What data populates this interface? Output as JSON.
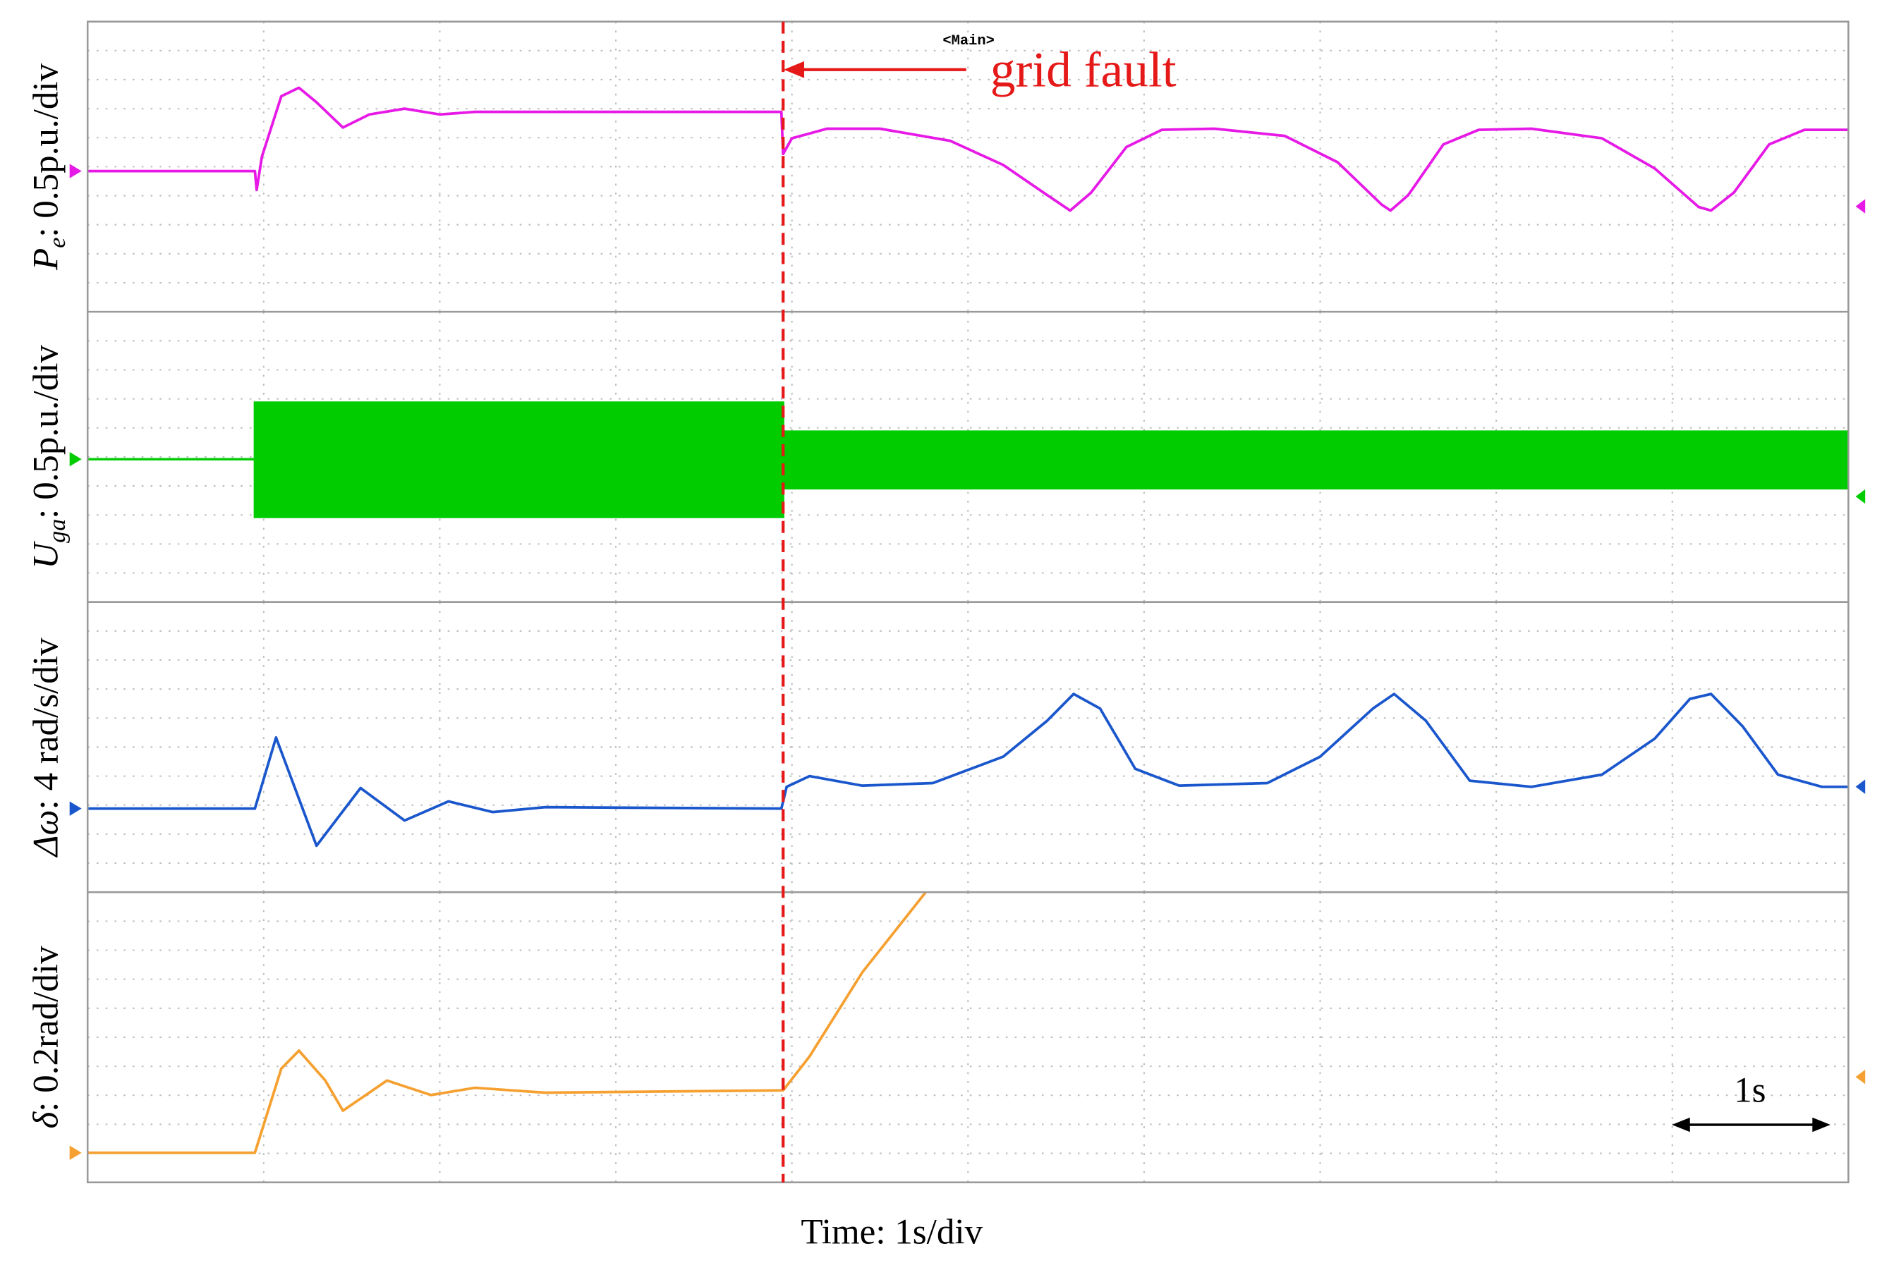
{
  "chart_data": [
    {
      "type": "line",
      "label": {
        "symbol": "P",
        "sub": "e",
        "scale": ": 0.5p.u./div"
      },
      "color": "#e619e6",
      "x": [
        0,
        0.95,
        0.96,
        0.99,
        1.1,
        1.2,
        1.3,
        1.45,
        1.6,
        1.8,
        2.0,
        2.2,
        3.0,
        3.94,
        3.95,
        4.0,
        4.2,
        4.5,
        4.9,
        5.2,
        5.45,
        5.58,
        5.7,
        5.9,
        6.1,
        6.4,
        6.8,
        7.1,
        7.35,
        7.4,
        7.5,
        7.7,
        7.9,
        8.2,
        8.6,
        8.9,
        9.15,
        9.22,
        9.35,
        9.55,
        9.75,
        10
      ],
      "values": [
        -0.15,
        -0.15,
        -0.8,
        0.35,
        2.43,
        2.72,
        2.22,
        1.35,
        1.8,
        2.0,
        1.8,
        1.89,
        1.89,
        1.89,
        0.44,
        0.98,
        1.31,
        1.31,
        0.89,
        0.06,
        -0.98,
        -1.51,
        -0.89,
        0.68,
        1.27,
        1.31,
        1.06,
        0.15,
        -1.31,
        -1.51,
        -0.98,
        0.77,
        1.27,
        1.31,
        0.98,
        -0.06,
        -1.39,
        -1.51,
        -0.89,
        0.77,
        1.27,
        1.27
      ],
      "xlim": [
        0,
        10
      ],
      "xticks": [
        1,
        2,
        3,
        4,
        5,
        6,
        7,
        8,
        9
      ],
      "ylim": [
        -5,
        5
      ],
      "yticks": [
        -4,
        -3,
        -2,
        -1,
        0,
        1,
        2,
        3,
        4
      ],
      "grid": true
    },
    {
      "type": "band",
      "label": {
        "symbol": "U",
        "sub": "ga",
        "scale": ": 0.5p.u./div"
      },
      "color": "#00cc00",
      "x": [
        0,
        0.95,
        0.95,
        3.95,
        3.95,
        10
      ],
      "upper": [
        -0.08,
        -0.08,
        1.87,
        1.87,
        0.87,
        0.87
      ],
      "lower": [
        -0.08,
        -0.08,
        -2.07,
        -2.07,
        -1.08,
        -1.08
      ],
      "xlim": [
        0,
        10
      ],
      "xticks": [
        1,
        2,
        3,
        4,
        5,
        6,
        7,
        8,
        9
      ],
      "ylim": [
        -5,
        5
      ],
      "yticks": [
        -4,
        -3,
        -2,
        -1,
        0,
        1,
        2,
        3,
        4
      ],
      "grid": true
    },
    {
      "type": "line",
      "label": {
        "symbol": "Δω",
        "scale": ": 4 rad/s/div"
      },
      "color": "#1a56cc",
      "x": [
        0,
        0.95,
        1.07,
        1.3,
        1.55,
        1.8,
        2.05,
        2.3,
        2.6,
        3.94,
        3.97,
        4.1,
        4.4,
        4.8,
        5.2,
        5.45,
        5.6,
        5.75,
        5.95,
        6.2,
        6.7,
        7.0,
        7.3,
        7.42,
        7.6,
        7.85,
        8.2,
        8.6,
        8.9,
        9.1,
        9.22,
        9.4,
        9.6,
        9.85,
        10
      ],
      "values": [
        -2.12,
        -2.12,
        0.33,
        -3.4,
        -1.41,
        -2.53,
        -1.87,
        -2.24,
        -2.07,
        -2.12,
        -1.37,
        -1.0,
        -1.33,
        -1.24,
        -0.33,
        0.91,
        1.83,
        1.33,
        -0.75,
        -1.33,
        -1.24,
        -0.33,
        1.33,
        1.83,
        0.91,
        -1.16,
        -1.37,
        -0.95,
        0.29,
        1.66,
        1.83,
        0.71,
        -0.95,
        -1.37,
        -1.37
      ],
      "xlim": [
        0,
        10
      ],
      "xticks": [
        1,
        2,
        3,
        4,
        5,
        6,
        7,
        8,
        9
      ],
      "ylim": [
        -5,
        5
      ],
      "yticks": [
        -4,
        -3,
        -2,
        -1,
        0,
        1,
        2,
        3,
        4
      ],
      "grid": true
    },
    {
      "type": "line",
      "label": {
        "symbol": "δ",
        "scale": ": 0.2rad/div"
      },
      "color": "#f5a030",
      "x": [
        0,
        0.95,
        1.1,
        1.2,
        1.35,
        1.45,
        1.7,
        1.95,
        2.2,
        2.6,
        3.95,
        4.1,
        4.4,
        4.76
      ],
      "values": [
        -3.98,
        -3.98,
        -1.08,
        -0.46,
        -1.49,
        -2.53,
        -1.49,
        -1.99,
        -1.74,
        -1.91,
        -1.83,
        -0.66,
        2.24,
        5.0
      ],
      "xlim": [
        0,
        10
      ],
      "xticks": [
        1,
        2,
        3,
        4,
        5,
        6,
        7,
        8,
        9
      ],
      "ylim": [
        -5,
        5
      ],
      "yticks": [
        -4,
        -3,
        -2,
        -1,
        0,
        1,
        2,
        3,
        4
      ],
      "grid": true
    }
  ],
  "xlabel": "Time: 1s/div",
  "annotations": {
    "fault_text": "grid fault",
    "fault_x": 3.95,
    "main_tag": "<Main>",
    "scale_bar": "1s"
  }
}
